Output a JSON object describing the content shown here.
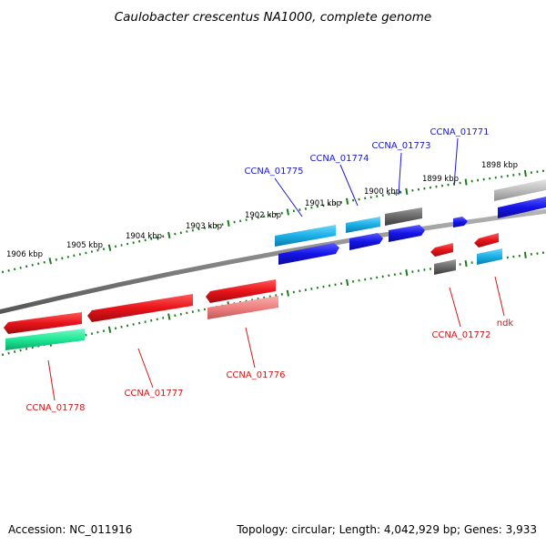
{
  "title": "Caulobacter crescentus NA1000, complete genome",
  "footer": {
    "accession": "Accession: NC_011916",
    "summary": "Topology: circular; Length: 4,042,929 bp; Genes: 3,933"
  },
  "kbp_labels": [
    "1906 kbp",
    "1905 kbp",
    "1904 kbp",
    "1903 kbp",
    "1902 kbp",
    "1901 kbp",
    "1900 kbp",
    "1899 kbp",
    "1898 kbp"
  ],
  "gene_labels": {
    "CCNA_01771": "CCNA_01771",
    "CCNA_01773": "CCNA_01773",
    "CCNA_01774": "CCNA_01774",
    "CCNA_01775": "CCNA_01775",
    "CCNA_01772": "CCNA_01772",
    "ndk": "ndk",
    "CCNA_01776": "CCNA_01776",
    "CCNA_01777": "CCNA_01777",
    "CCNA_01778": "CCNA_01778"
  },
  "colors": {
    "red": "#e8141a",
    "light_red": "#f08080",
    "sky_blue": "#1ab0e8",
    "blue": "#1414e8",
    "dark_gray": "#6a6a6a",
    "light_gray": "#bdbdbd",
    "spring_green": "#1ee896",
    "tick_green": "#1e7a1e",
    "label_blue": "#1a1acc",
    "label_red": "#cc1a1a"
  }
}
